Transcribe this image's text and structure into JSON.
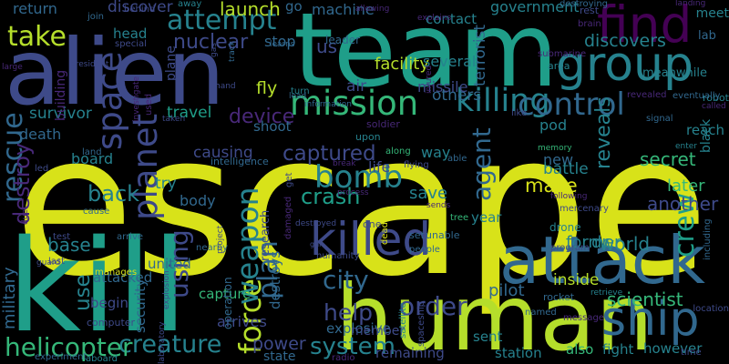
{
  "palette": {
    "background": "#000000",
    "purple": "#440154",
    "indigo": "#482878",
    "slate": "#3e4a89",
    "blue": "#31688e",
    "teal": "#26828e",
    "green_teal": "#1f9e89",
    "green": "#35b779",
    "lime": "#6ece58",
    "yellow_green": "#b5de2b",
    "yellow": "#d8e219"
  },
  "words": [
    {
      "text": "escape",
      "color": "#d8e219"
    },
    {
      "text": "team",
      "color": "#1f9e89"
    },
    {
      "text": "alien",
      "color": "#3e4a89"
    },
    {
      "text": "kill",
      "color": "#1f9e89"
    },
    {
      "text": "human",
      "color": "#b5de2b"
    },
    {
      "text": "attack",
      "color": "#31688e"
    },
    {
      "text": "find",
      "color": "#440154"
    },
    {
      "text": "group",
      "color": "#26828e"
    },
    {
      "text": "killed",
      "color": "#3e4a89"
    },
    {
      "text": "ship",
      "color": "#31688e"
    },
    {
      "text": "mission",
      "color": "#35b779"
    },
    {
      "text": "attempt",
      "color": "#26828e"
    },
    {
      "text": "space",
      "color": "#3e4a89"
    },
    {
      "text": "killing",
      "color": "#26828e"
    },
    {
      "text": "take",
      "color": "#b5de2b"
    },
    {
      "text": "control",
      "color": "#31688e"
    },
    {
      "text": "bomb",
      "color": "#26828e"
    },
    {
      "text": "force",
      "color": "#b5de2b"
    },
    {
      "text": "weapon",
      "color": "#26828e"
    },
    {
      "text": "planet",
      "color": "#3e4a89"
    },
    {
      "text": "rescue",
      "color": "#31688e"
    },
    {
      "text": "order",
      "color": "#3e4a89"
    },
    {
      "text": "creature",
      "color": "#26828e"
    },
    {
      "text": "helicopter",
      "color": "#35b779"
    },
    {
      "text": "system",
      "color": "#26828e"
    },
    {
      "text": "city",
      "color": "#31688e"
    },
    {
      "text": "crew",
      "color": "#1f9e89"
    },
    {
      "text": "agent",
      "color": "#31688e"
    },
    {
      "text": "plan",
      "color": "#31688e"
    },
    {
      "text": "using",
      "color": "#3e4a89"
    },
    {
      "text": "captured",
      "color": "#3e4a89"
    },
    {
      "text": "help",
      "color": "#3e4a89"
    },
    {
      "text": "nuclear",
      "color": "#3e4a89"
    },
    {
      "text": "device",
      "color": "#482878"
    },
    {
      "text": "discovers",
      "color": "#26828e"
    },
    {
      "text": "world",
      "color": "#26828e"
    },
    {
      "text": "scientist",
      "color": "#35b779"
    },
    {
      "text": "reveals",
      "color": "#26828e"
    },
    {
      "text": "crash",
      "color": "#1f9e89"
    },
    {
      "text": "back",
      "color": "#26828e"
    },
    {
      "text": "make",
      "color": "#d8e219"
    },
    {
      "text": "destroy",
      "color": "#482878"
    },
    {
      "text": "machine",
      "color": "#31688e"
    },
    {
      "text": "government",
      "color": "#26828e"
    },
    {
      "text": "base",
      "color": "#26828e"
    },
    {
      "text": "survivor",
      "color": "#26828e"
    },
    {
      "text": "facility",
      "color": "#b5de2b"
    },
    {
      "text": "terrorist",
      "color": "#31688e"
    },
    {
      "text": "military",
      "color": "#31688e"
    },
    {
      "text": "launch",
      "color": "#b5de2b"
    },
    {
      "text": "power",
      "color": "#3e4a89"
    },
    {
      "text": "pilot",
      "color": "#31688e"
    },
    {
      "text": "station",
      "color": "#26828e"
    },
    {
      "text": "fight",
      "color": "#26828e"
    },
    {
      "text": "however",
      "color": "#26828e"
    },
    {
      "text": "dr",
      "color": "#26828e"
    },
    {
      "text": "former",
      "color": "#26828e"
    },
    {
      "text": "new",
      "color": "#31688e"
    },
    {
      "text": "battle",
      "color": "#26828e"
    },
    {
      "text": "secret",
      "color": "#35b779"
    },
    {
      "text": "another",
      "color": "#3e4a89"
    },
    {
      "text": "later",
      "color": "#35b779"
    },
    {
      "text": "save",
      "color": "#26828e"
    },
    {
      "text": "year",
      "color": "#26828e"
    },
    {
      "text": "inside",
      "color": "#b5de2b"
    },
    {
      "text": "life",
      "color": "#3e4a89"
    },
    {
      "text": "way",
      "color": "#26828e"
    },
    {
      "text": "several",
      "color": "#26828e"
    },
    {
      "text": "others",
      "color": "#31688e"
    },
    {
      "text": "air",
      "color": "#3e4a89"
    },
    {
      "text": "us",
      "color": "#3e4a89"
    },
    {
      "text": "contact",
      "color": "#26828e"
    },
    {
      "text": "fly",
      "color": "#b5de2b"
    },
    {
      "text": "travel",
      "color": "#1f9e89"
    },
    {
      "text": "shoot",
      "color": "#31688e"
    },
    {
      "text": "causing",
      "color": "#3e4a89"
    },
    {
      "text": "try",
      "color": "#26828e"
    },
    {
      "text": "body",
      "color": "#31688e"
    },
    {
      "text": "board",
      "color": "#26828e"
    },
    {
      "text": "death",
      "color": "#31688e"
    },
    {
      "text": "return",
      "color": "#31688e"
    },
    {
      "text": "discover",
      "color": "#3e4a89"
    },
    {
      "text": "head",
      "color": "#26828e"
    },
    {
      "text": "stop",
      "color": "#31688e"
    },
    {
      "text": "go",
      "color": "#31688e"
    },
    {
      "text": "united",
      "color": "#31688e"
    },
    {
      "text": "attacked",
      "color": "#31688e"
    },
    {
      "text": "use",
      "color": "#26828e"
    },
    {
      "text": "begin",
      "color": "#3e4a89"
    },
    {
      "text": "security",
      "color": "#31688e"
    },
    {
      "text": "capture",
      "color": "#35b779"
    },
    {
      "text": "arrives",
      "color": "#3e4a89"
    },
    {
      "text": "destroys",
      "color": "#31688e"
    },
    {
      "text": "research",
      "color": "#3e4a89"
    },
    {
      "text": "remaining",
      "color": "#3e4a89"
    },
    {
      "text": "sent",
      "color": "#26828e"
    },
    {
      "text": "also",
      "color": "#35b779"
    },
    {
      "text": "state",
      "color": "#31688e"
    },
    {
      "text": "missile",
      "color": "#3e4a89"
    },
    {
      "text": "pod",
      "color": "#26828e"
    },
    {
      "text": "meanwhile",
      "color": "#26828e"
    },
    {
      "text": "reach",
      "color": "#26828e"
    },
    {
      "text": "lab",
      "color": "#31688e"
    },
    {
      "text": "meet",
      "color": "#26828e"
    },
    {
      "text": "explosive",
      "color": "#31688e"
    },
    {
      "text": "member",
      "color": "#3e4a89"
    },
    {
      "text": "operation",
      "color": "#31688e"
    },
    {
      "text": "drone",
      "color": "#26828e"
    },
    {
      "text": "leader",
      "color": "#31688e"
    },
    {
      "text": "robot",
      "color": "#26828e"
    },
    {
      "text": "land",
      "color": "#31688e"
    },
    {
      "text": "set",
      "color": "#31688e"
    },
    {
      "text": "plane",
      "color": "#3e4a89"
    },
    {
      "text": "building",
      "color": "#482878"
    },
    {
      "text": "computer",
      "color": "#3e4a89"
    },
    {
      "text": "manages",
      "color": "#d8e219"
    },
    {
      "text": "last",
      "color": "#3e4a89"
    },
    {
      "text": "test",
      "color": "#3e4a89"
    },
    {
      "text": "cause",
      "color": "#31688e"
    },
    {
      "text": "arrive",
      "color": "#31688e"
    },
    {
      "text": "nearby",
      "color": "#31688e"
    },
    {
      "text": "turn",
      "color": "#26828e"
    },
    {
      "text": "gun",
      "color": "#3e4a89"
    },
    {
      "text": "radio",
      "color": "#482878"
    },
    {
      "text": "location",
      "color": "#3e4a89"
    },
    {
      "text": "aboard",
      "color": "#26828e"
    },
    {
      "text": "named",
      "color": "#31688e"
    },
    {
      "text": "rocket",
      "color": "#31688e"
    },
    {
      "text": "retrieve",
      "color": "#26828e"
    },
    {
      "text": "following",
      "color": "#482878"
    },
    {
      "text": "called",
      "color": "#482878"
    },
    {
      "text": "signal",
      "color": "#31688e"
    },
    {
      "text": "eventually",
      "color": "#31688e"
    },
    {
      "text": "revealed",
      "color": "#482878"
    },
    {
      "text": "behind",
      "color": "#3e4a89"
    },
    {
      "text": "join",
      "color": "#31688e"
    },
    {
      "text": "president",
      "color": "#3e4a89"
    },
    {
      "text": "large",
      "color": "#482878"
    },
    {
      "text": "special",
      "color": "#3e4a89"
    },
    {
      "text": "hand",
      "color": "#3e4a89"
    },
    {
      "text": "taken",
      "color": "#3e4a89"
    },
    {
      "text": "information",
      "color": "#31688e"
    },
    {
      "text": "lead",
      "color": "#31688e"
    },
    {
      "text": "allowing",
      "color": "#482878"
    },
    {
      "text": "explains",
      "color": "#482878"
    },
    {
      "text": "brain",
      "color": "#482878"
    },
    {
      "text": "rest",
      "color": "#3e4a89"
    },
    {
      "text": "landing",
      "color": "#482878"
    },
    {
      "text": "submarine",
      "color": "#482878"
    },
    {
      "text": "area",
      "color": "#26828e"
    },
    {
      "text": "destroying",
      "color": "#31688e"
    },
    {
      "text": "away",
      "color": "#26828e"
    },
    {
      "text": "learns",
      "color": "#31688e"
    },
    {
      "text": "track",
      "color": "#31688e"
    },
    {
      "text": "gas",
      "color": "#3e4a89"
    },
    {
      "text": "injured",
      "color": "#482878"
    },
    {
      "text": "soldier",
      "color": "#482878"
    },
    {
      "text": "upon",
      "color": "#26828e"
    },
    {
      "text": "along",
      "color": "#35b779"
    },
    {
      "text": "flying",
      "color": "#3e4a89"
    },
    {
      "text": "memory",
      "color": "#35b779"
    },
    {
      "text": "enter",
      "color": "#26828e"
    },
    {
      "text": "black",
      "color": "#26828e"
    },
    {
      "text": "like",
      "color": "#3e4a89"
    },
    {
      "text": "able",
      "color": "#31688e"
    },
    {
      "text": "tree",
      "color": "#35b779"
    },
    {
      "text": "mercenary",
      "color": "#3e4a89"
    },
    {
      "text": "break",
      "color": "#482878"
    },
    {
      "text": "sends",
      "color": "#482878"
    },
    {
      "text": "process",
      "color": "#482878"
    },
    {
      "text": "damaged",
      "color": "#482878"
    },
    {
      "text": "people",
      "color": "#31688e"
    },
    {
      "text": "unable",
      "color": "#31688e"
    },
    {
      "text": "one",
      "color": "#3e4a89"
    },
    {
      "text": "destroyed",
      "color": "#3e4a89"
    },
    {
      "text": "get",
      "color": "#3e4a89"
    },
    {
      "text": "dead",
      "color": "#d8e219"
    },
    {
      "text": "satellite",
      "color": "#26828e"
    },
    {
      "text": "spaceship",
      "color": "#3e4a89"
    },
    {
      "text": "program",
      "color": "#3e4a89"
    },
    {
      "text": "message",
      "color": "#482878"
    },
    {
      "text": "time",
      "color": "#3e4a89"
    },
    {
      "text": "including",
      "color": "#31688e"
    },
    {
      "text": "project",
      "color": "#3e4a89"
    },
    {
      "text": "intelligence",
      "color": "#31688e"
    },
    {
      "text": "led",
      "color": "#3e4a89"
    },
    {
      "text": "guard",
      "color": "#3e4a89"
    },
    {
      "text": "due",
      "color": "#482878"
    },
    {
      "text": "used",
      "color": "#482878"
    },
    {
      "text": "investigate",
      "color": "#482878"
    },
    {
      "text": "explosion",
      "color": "#3e4a89"
    },
    {
      "text": "laboratory",
      "color": "#3e4a89"
    },
    {
      "text": "experiment",
      "color": "#31688e"
    },
    {
      "text": "humanity",
      "color": "#3e4a89"
    },
    {
      "text": "explodes",
      "color": "#3e4a89"
    },
    {
      "text": "near",
      "color": "#3e4a89"
    }
  ]
}
